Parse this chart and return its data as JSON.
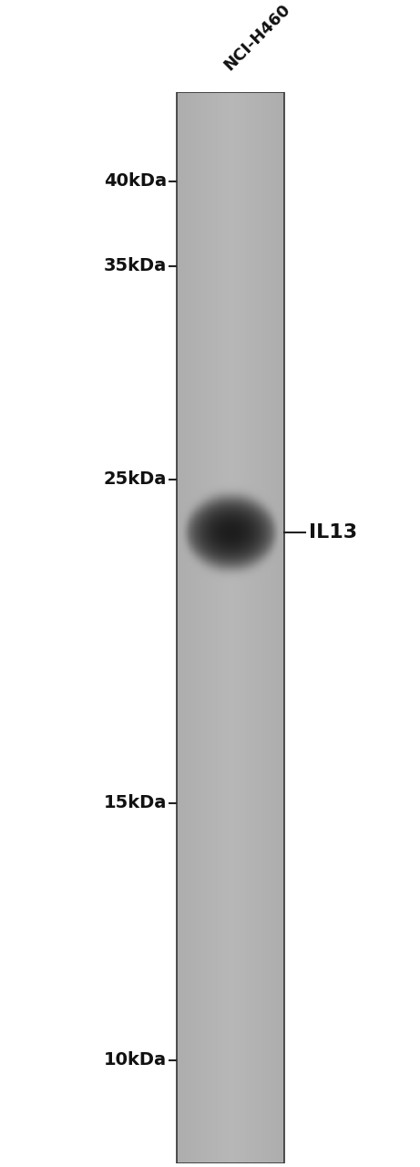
{
  "background_color": "#ffffff",
  "gel_bg_color": "#b8b8b8",
  "band_color": "#111111",
  "mw_markers": [
    {
      "label": "40kDa",
      "kda": 40
    },
    {
      "label": "35kDa",
      "kda": 35
    },
    {
      "label": "25kDa",
      "kda": 25
    },
    {
      "label": "15kDa",
      "kda": 15
    },
    {
      "label": "10kDa",
      "kda": 10
    }
  ],
  "band_kda": 23,
  "band_label": "IL13",
  "lane_label": "NCI-H460",
  "lane_label_rotation": 45,
  "kda_min": 8.5,
  "kda_max": 46,
  "fig_width": 4.61,
  "fig_height": 12.8,
  "dpi": 100
}
